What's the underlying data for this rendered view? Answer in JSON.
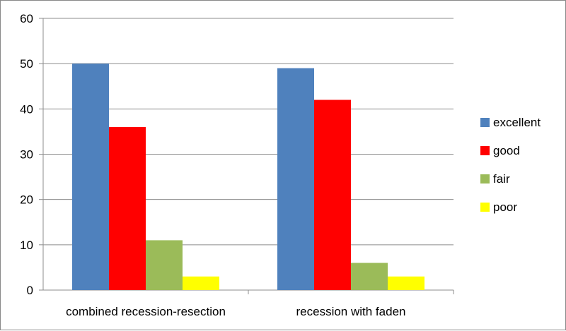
{
  "chart_data": {
    "type": "bar",
    "title": "",
    "xlabel": "",
    "ylabel": "",
    "categories": [
      "combined recession-resection",
      "recession with faden"
    ],
    "series": [
      {
        "name": "excellent",
        "color": "#4f81bd",
        "values": [
          50,
          49
        ]
      },
      {
        "name": "good",
        "color": "#ff0000",
        "values": [
          36,
          42
        ]
      },
      {
        "name": "fair",
        "color": "#9bbb59",
        "values": [
          11,
          6
        ]
      },
      {
        "name": "poor",
        "color": "#ffff00",
        "values": [
          3,
          3
        ]
      }
    ],
    "ylim": [
      0,
      60
    ],
    "yticks": [
      0,
      10,
      20,
      30,
      40,
      50,
      60
    ],
    "grid": true,
    "legend_position": "right"
  }
}
